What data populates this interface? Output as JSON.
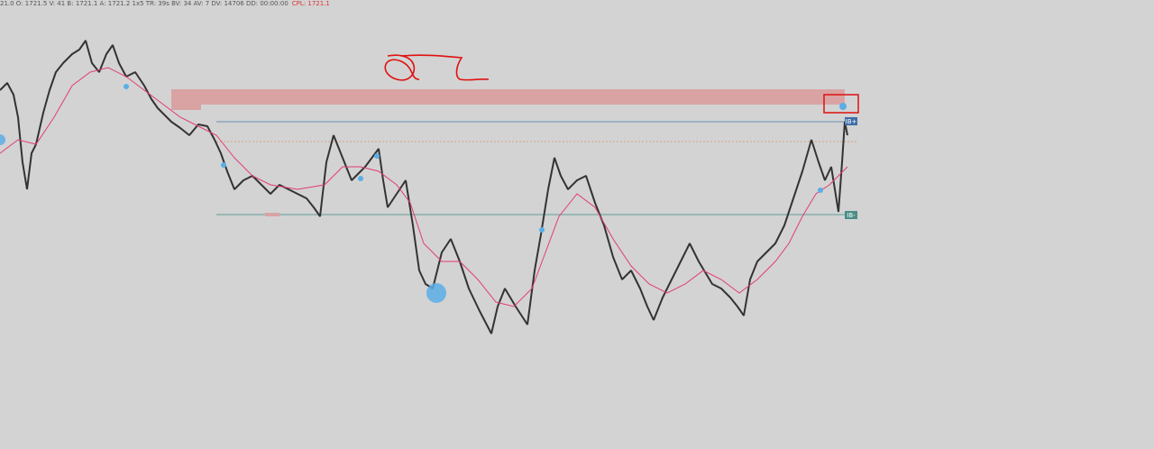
{
  "status_bar": {
    "quote": "21.0 O: 1721.5 V: 41 B: 1721.1 A: 1721.2 1x5 TR: 39s BV: 34 AV: 7 DV: 14706 DD: 00:00:00",
    "cpl": "CPL: 1721.1"
  },
  "levels": {
    "upper_label": "IB+",
    "lower_label": "IB-"
  }
}
